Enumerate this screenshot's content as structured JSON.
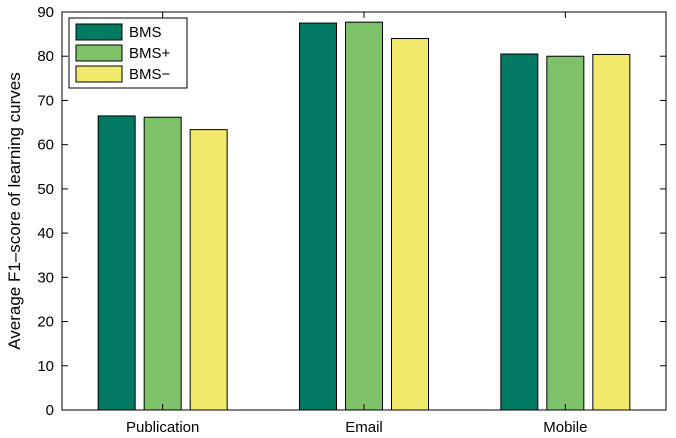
{
  "chart_data": {
    "type": "bar",
    "title": "",
    "xlabel": "",
    "ylabel": "Average F1–score of learning curves",
    "categories": [
      "Publication",
      "Email",
      "Mobile"
    ],
    "ylim": [
      0,
      90
    ],
    "yticks": [
      0,
      10,
      20,
      30,
      40,
      50,
      60,
      70,
      80,
      90
    ],
    "legend_position": "top-left",
    "series": [
      {
        "name": "BMS",
        "color": "#007a62",
        "values": [
          66.5,
          87.5,
          80.5
        ]
      },
      {
        "name": "BMS+",
        "color": "#7ec26a",
        "values": [
          66.2,
          87.7,
          80.0
        ]
      },
      {
        "name": "BMS−",
        "color": "#f1e96c",
        "values": [
          63.4,
          84.0,
          80.4
        ]
      }
    ]
  }
}
